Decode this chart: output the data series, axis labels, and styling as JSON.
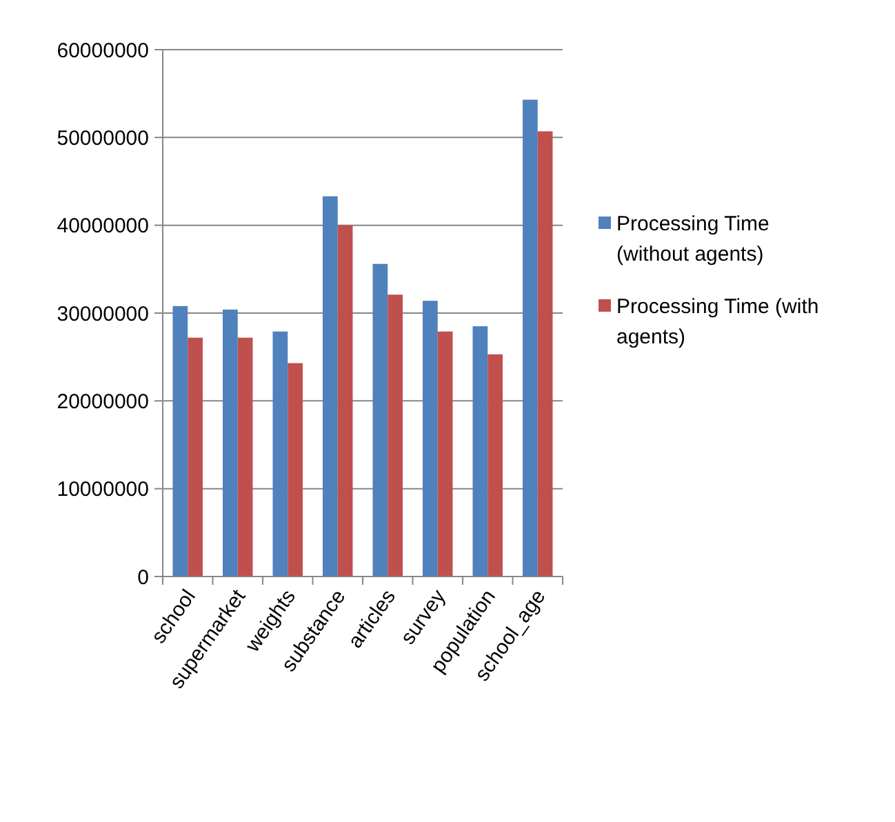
{
  "chart_data": {
    "type": "bar",
    "categories": [
      "school",
      "supermarket",
      "weights",
      "substance",
      "articles",
      "survey",
      "population",
      "school_age"
    ],
    "series": [
      {
        "name": "Processing Time (without agents)",
        "color": "#4f81bd",
        "values": [
          30800000,
          30400000,
          27900000,
          43300000,
          35600000,
          31400000,
          28500000,
          54300000
        ]
      },
      {
        "name": "Processing Time (with agents)",
        "color": "#c0504d",
        "values": [
          27200000,
          27200000,
          24300000,
          40000000,
          32100000,
          27900000,
          25300000,
          50700000
        ]
      }
    ],
    "ylim": [
      0,
      60000000
    ],
    "yticks": [
      0,
      10000000,
      20000000,
      30000000,
      40000000,
      50000000,
      60000000
    ],
    "grid": "y",
    "legend": "right"
  }
}
